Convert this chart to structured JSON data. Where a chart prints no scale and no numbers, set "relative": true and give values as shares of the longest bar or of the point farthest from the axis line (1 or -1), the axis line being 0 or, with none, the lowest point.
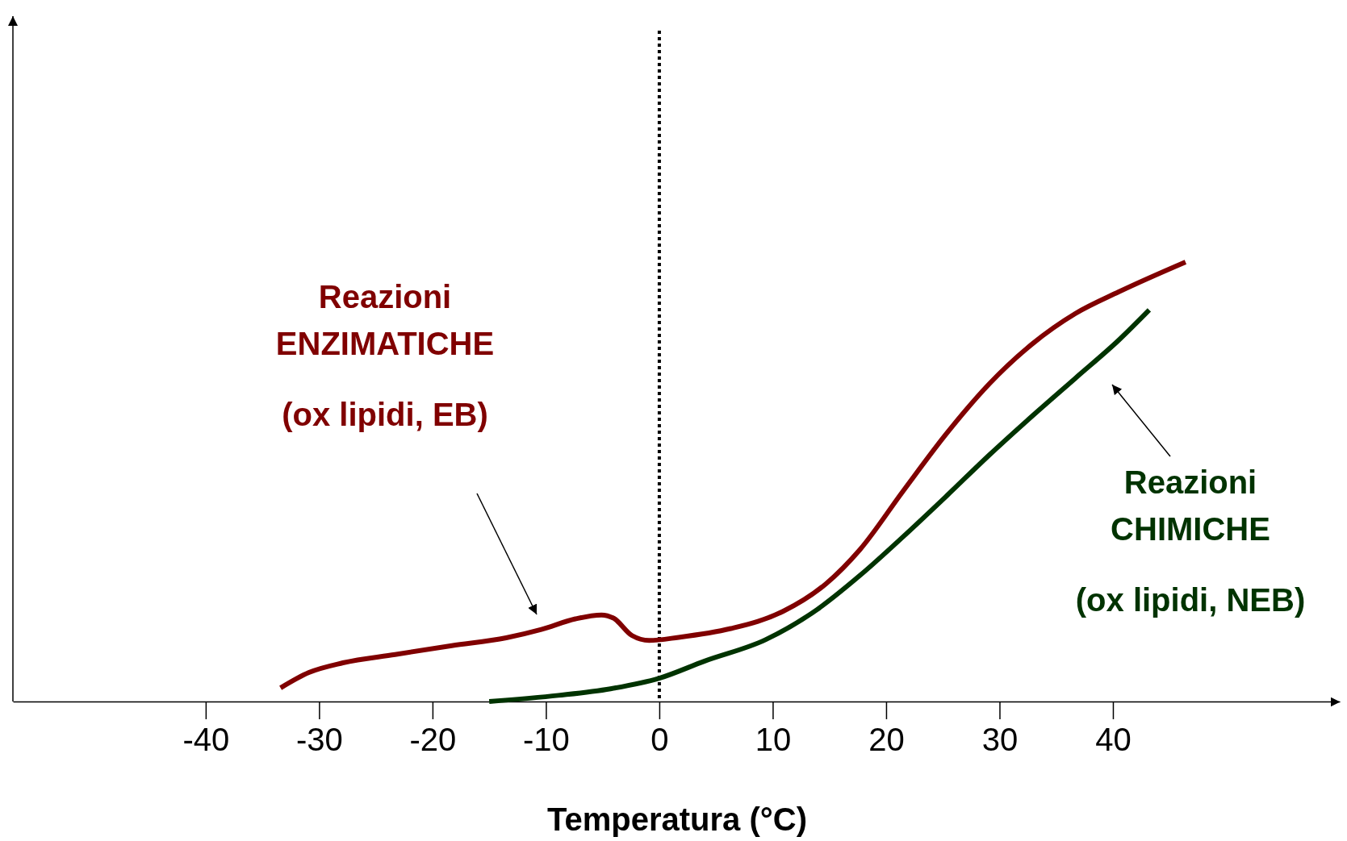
{
  "chart_data": {
    "type": "line",
    "relative": true,
    "xlabel": "Temperatura (°C)",
    "xlim": [
      -57,
      60
    ],
    "xticks": [
      -40,
      -30,
      -20,
      -10,
      0,
      10,
      20,
      30,
      40
    ],
    "series": [
      {
        "color": "#800000",
        "x": [
          -33.4,
          -30.9,
          -27.9,
          -23.3,
          -18.3,
          -13.5,
          -10.4,
          -7.4,
          -5.1,
          -4.0,
          -2.4,
          -0.9,
          1.7,
          6.3,
          10.9,
          14.7,
          17.7,
          21.5,
          25.3,
          29.1,
          32.9,
          36.7,
          40.5,
          46.4
        ],
        "values": [
          0.031,
          0.066,
          0.088,
          0.107,
          0.127,
          0.145,
          0.164,
          0.188,
          0.197,
          0.189,
          0.15,
          0.139,
          0.146,
          0.166,
          0.205,
          0.268,
          0.346,
          0.479,
          0.609,
          0.723,
          0.814,
          0.883,
          0.932,
          1.0
        ]
      },
      {
        "color": "#003300",
        "x": [
          -15.0,
          -8.9,
          -4.3,
          0,
          4.0,
          9.4,
          13.9,
          17.7,
          21.5,
          25.3,
          29.1,
          32.9,
          36.7,
          40.5,
          43.2
        ],
        "values": [
          0,
          0.014,
          0.029,
          0.053,
          0.092,
          0.141,
          0.209,
          0.287,
          0.375,
          0.467,
          0.561,
          0.65,
          0.736,
          0.822,
          0.891
        ]
      }
    ],
    "ref_lines": [
      {
        "axis": "x",
        "value": 0,
        "line_style": "dotted",
        "color": "#000000"
      }
    ],
    "annotations": [
      "Reazioni\nENZIMATICHE\n(ox lipidi, EB)",
      "Reazioni\nCHIMICHE\n(ox lipidi, NEB)"
    ]
  }
}
